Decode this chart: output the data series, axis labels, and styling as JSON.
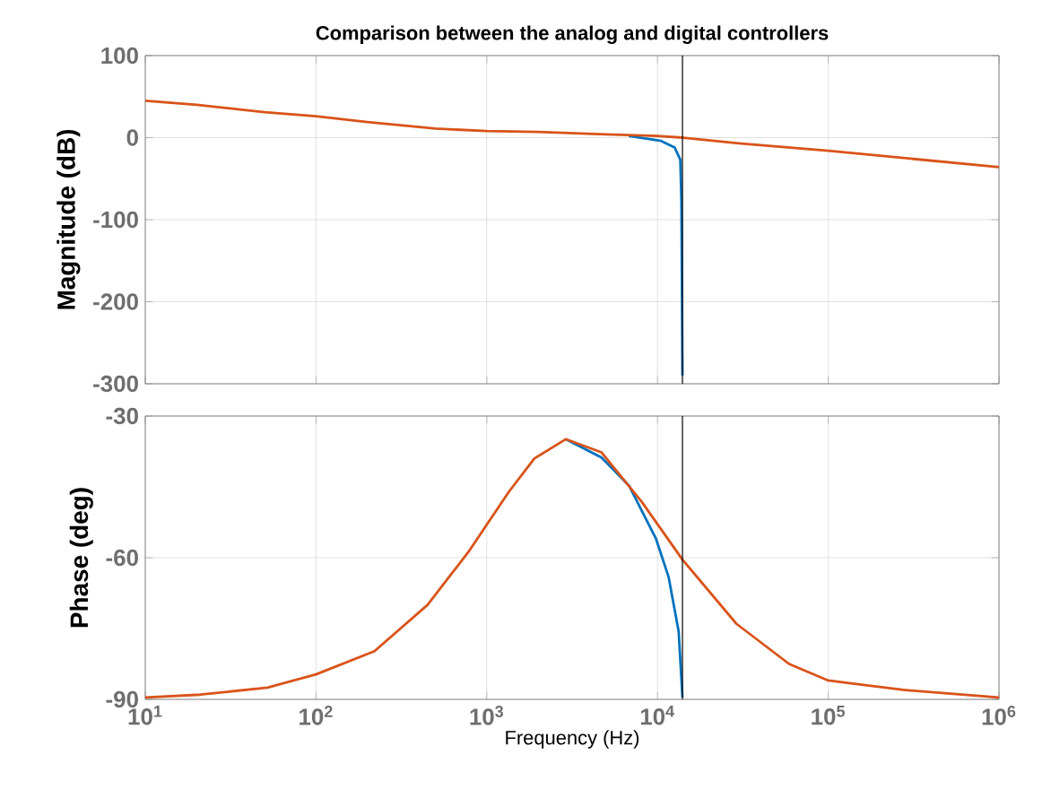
{
  "chart_data": [
    {
      "type": "line",
      "title": "Comparison between the analog and digital controllers",
      "ylabel": "Magnitude (dB)",
      "xlim": [
        10,
        1000000
      ],
      "ylim": [
        -300,
        100
      ],
      "log": "x",
      "grid": true,
      "tick_labels": "y",
      "line_style": "solid",
      "xticks": [
        {
          "value": 10,
          "label": null
        },
        {
          "value": 100,
          "label": null
        },
        {
          "value": 1000,
          "label": null
        },
        {
          "value": 10000,
          "label": null
        },
        {
          "value": 100000,
          "label": null
        },
        {
          "value": 1000000,
          "label": null
        }
      ],
      "yticks": [
        -300,
        -200,
        -100,
        0,
        100
      ],
      "ref_lines": [
        {
          "axis": "x",
          "value": 14000,
          "color": "#000000"
        }
      ],
      "series": [
        {
          "color": "#0072bd",
          "x": [
            6800,
            10500,
            12600,
            13600,
            13800,
            14000
          ],
          "values": [
            2,
            -4,
            -12,
            -27,
            -75,
            -290
          ]
        },
        {
          "color": "#d95319",
          "x": [
            10,
            20,
            50,
            100,
            200,
            500,
            1000,
            2000,
            5000,
            10000,
            14000,
            30000,
            100000,
            1000000
          ],
          "values": [
            45,
            40,
            31,
            26,
            19,
            11,
            8,
            7,
            4,
            2,
            0,
            -7,
            -16,
            -36
          ]
        }
      ]
    },
    {
      "type": "line",
      "xlabel": "Frequency  (Hz)",
      "ylabel": "Phase (deg)",
      "xlim": [
        10,
        1000000
      ],
      "ylim": [
        -90,
        -30
      ],
      "log": "x",
      "grid": true,
      "line_style": "solid",
      "xticks": [
        {
          "value": 10,
          "label": "10$^{1}$"
        },
        {
          "value": 100,
          "label": "10$^{2}$"
        },
        {
          "value": 1000,
          "label": "10$^{3}$"
        },
        {
          "value": 10000,
          "label": "10$^{4}$"
        },
        {
          "value": 100000,
          "label": "10$^{5}$"
        },
        {
          "value": 1000000,
          "label": "10$^{6}$"
        }
      ],
      "yticks": [
        -90,
        -60,
        -30
      ],
      "ref_lines": [
        {
          "axis": "x",
          "value": 14000,
          "color": "#000000"
        }
      ],
      "series": [
        {
          "color": "#0072bd",
          "x": [
            2900,
            4700,
            6800,
            9800,
            11600,
            13300,
            14000
          ],
          "values": [
            -34.9,
            -38.8,
            -44.7,
            -56,
            -64,
            -75.6,
            -89.6
          ]
        },
        {
          "color": "#d95319",
          "x": [
            10,
            21,
            52,
            100,
            220,
            450,
            780,
            1350,
            1900,
            2900,
            4700,
            8100,
            14000,
            29000,
            59000,
            100000,
            275000,
            1000000
          ],
          "values": [
            -89.6,
            -89,
            -87.5,
            -84.7,
            -79.8,
            -70,
            -58.8,
            -46,
            -39,
            -34.9,
            -37.7,
            -48.2,
            -60.4,
            -74,
            -82.5,
            -86,
            -88,
            -89.6
          ]
        }
      ]
    }
  ]
}
